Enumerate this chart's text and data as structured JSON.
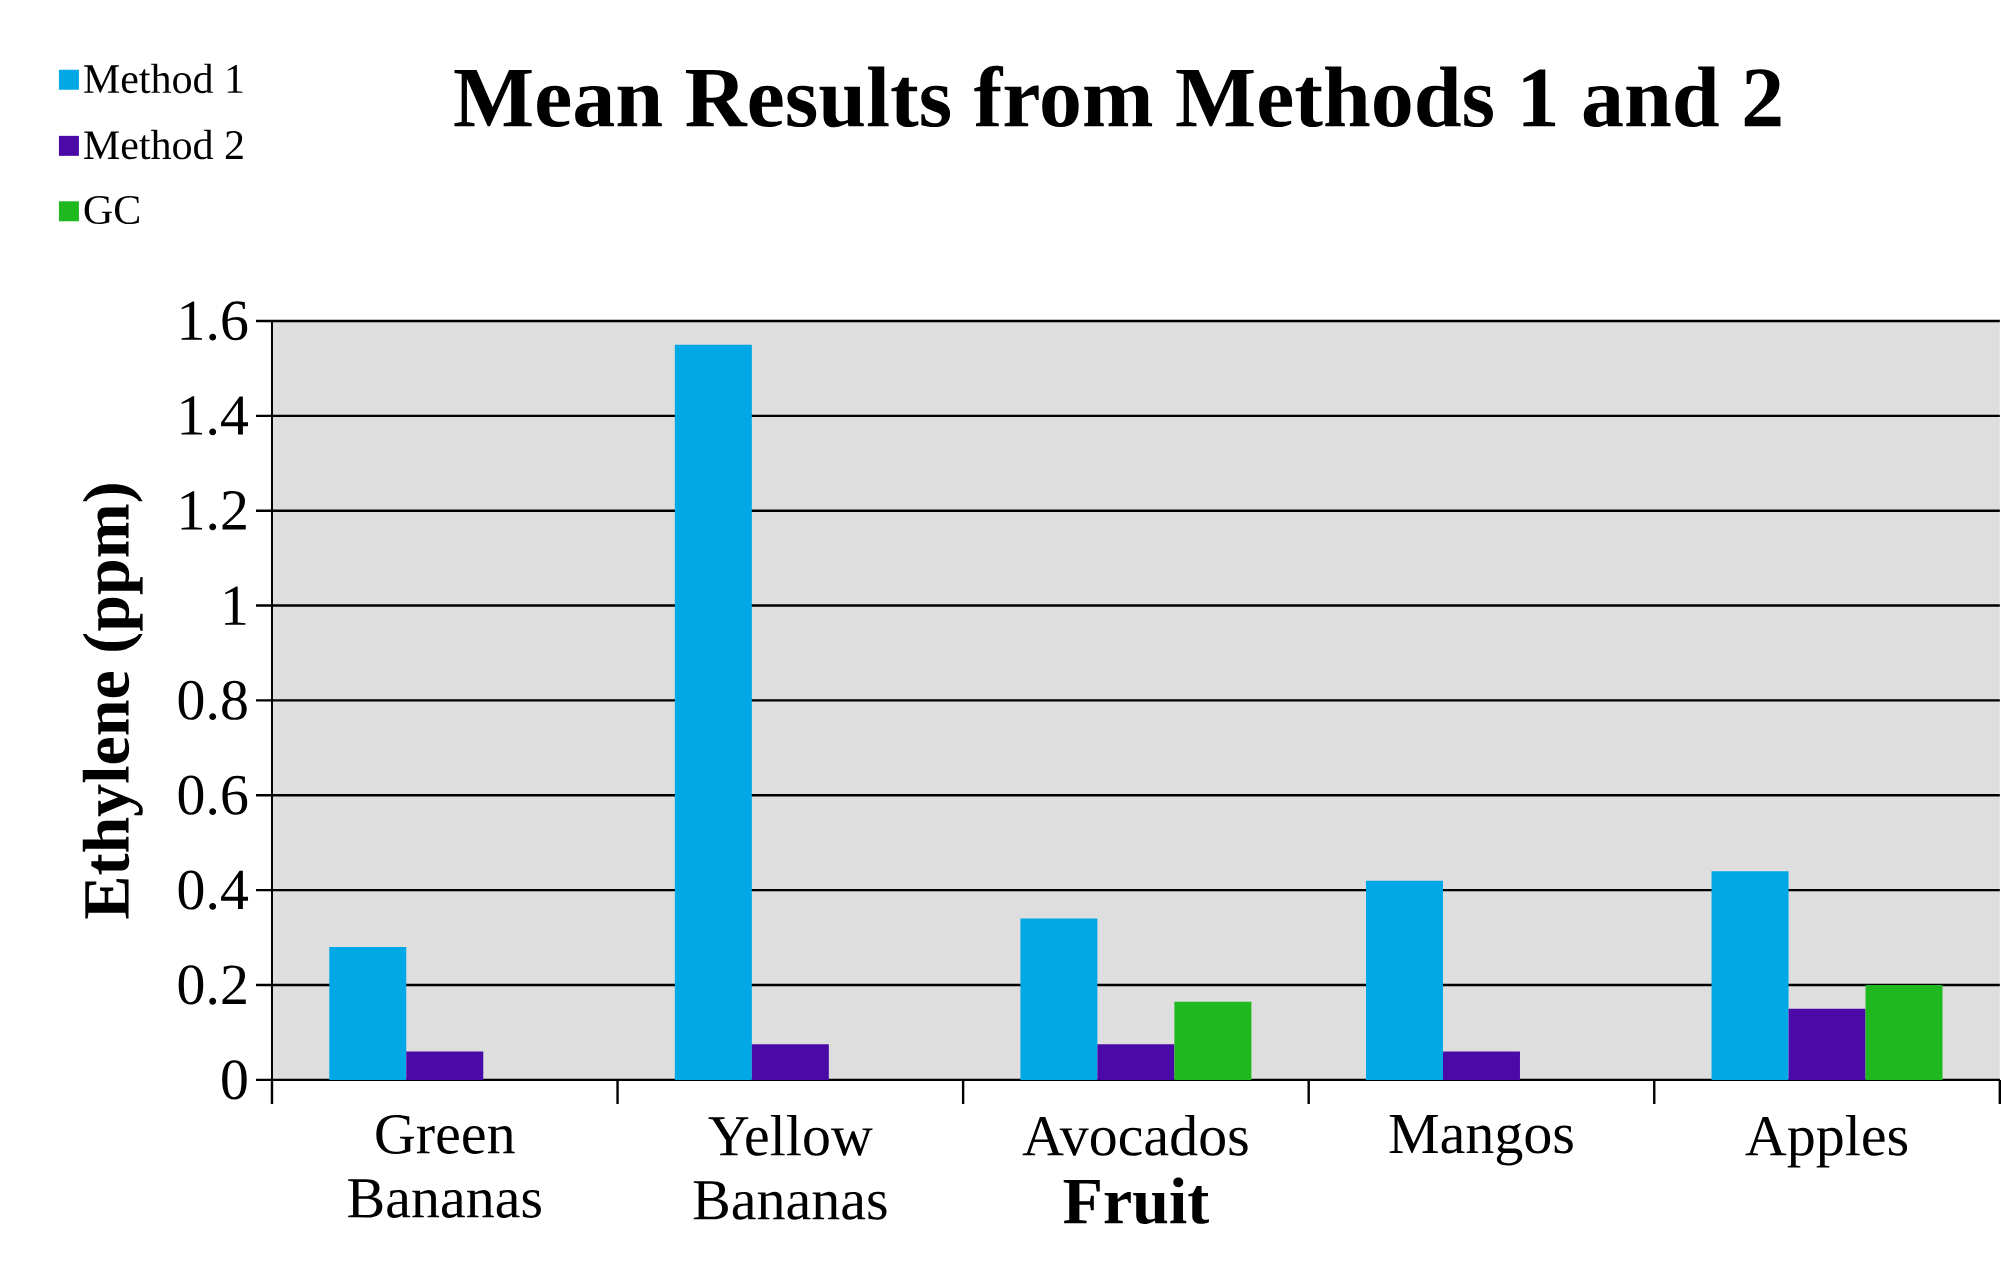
{
  "chart_data": {
    "type": "bar",
    "title": "Mean Results from Methods 1 and 2",
    "xlabel": "Fruit",
    "ylabel": "Ethylene (ppm)",
    "categories": [
      "Green Bananas",
      "Yellow Bananas",
      "Avocados",
      "Mangos",
      "Apples"
    ],
    "series": [
      {
        "name": "Method 1",
        "color": "#00a8e6",
        "values": [
          0.28,
          1.55,
          0.34,
          0.42,
          0.44
        ]
      },
      {
        "name": "Method 2",
        "color": "#4b0aa8",
        "values": [
          0.06,
          0.075,
          0.075,
          0.06,
          0.15
        ]
      },
      {
        "name": "GC",
        "color": "#1fb81f",
        "values": [
          null,
          null,
          0.165,
          null,
          0.2
        ]
      }
    ],
    "ylim": [
      0,
      1.6
    ],
    "yticks": [
      0,
      0.2,
      0.4,
      0.6,
      0.8,
      1,
      1.2,
      1.4,
      1.6
    ],
    "grid": "y",
    "legend": "top left"
  }
}
